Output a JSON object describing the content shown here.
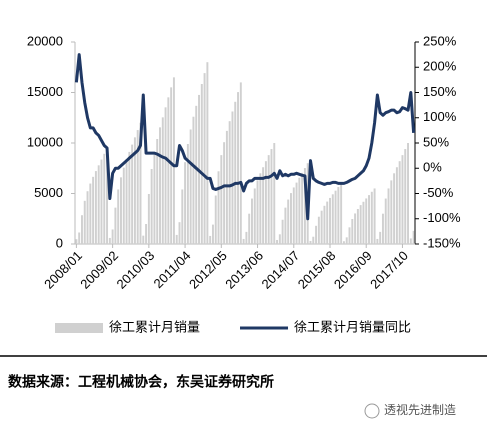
{
  "chart_data": {
    "type": "bar",
    "categories": [
      "2008/01",
      null,
      null,
      null,
      null,
      null,
      null,
      null,
      null,
      null,
      null,
      null,
      null,
      "2009/02",
      null,
      null,
      null,
      null,
      null,
      null,
      null,
      null,
      null,
      null,
      null,
      null,
      "2010/03",
      null,
      null,
      null,
      null,
      null,
      null,
      null,
      null,
      null,
      null,
      null,
      null,
      "2011/04",
      null,
      null,
      null,
      null,
      null,
      null,
      null,
      null,
      null,
      null,
      null,
      null,
      "2012/05",
      null,
      null,
      null,
      null,
      null,
      null,
      null,
      null,
      null,
      null,
      null,
      null,
      "2013/06",
      null,
      null,
      null,
      null,
      null,
      null,
      null,
      null,
      null,
      null,
      null,
      null,
      "2014/07",
      null,
      null,
      null,
      null,
      null,
      null,
      null,
      null,
      null,
      null,
      null,
      null,
      "2015/08",
      null,
      null,
      null,
      null,
      null,
      null,
      null,
      null,
      null,
      null,
      null,
      null,
      "2016/09",
      null,
      null,
      null,
      null,
      null,
      null,
      null,
      null,
      null,
      null,
      null,
      null,
      "2017/10",
      null,
      null,
      null,
      null
    ],
    "series": [
      {
        "name": "徐工累计月销量",
        "color": "#d0d0d0",
        "values": [
          475,
          1140,
          2850,
          4275,
          5225,
          5985,
          6650,
          7220,
          7790,
          8360,
          8930,
          9500,
          600,
          1440,
          3600,
          5400,
          6600,
          7560,
          8400,
          9120,
          9840,
          10560,
          11280,
          12000,
          825,
          1980,
          4950,
          7425,
          9075,
          10395,
          11550,
          12540,
          13530,
          14520,
          15510,
          16500,
          900,
          2160,
          5400,
          8100,
          9900,
          11340,
          12600,
          13680,
          14760,
          15840,
          16920,
          18000,
          800,
          1920,
          4800,
          7200,
          8800,
          10080,
          11200,
          12160,
          13120,
          14080,
          15040,
          16000,
          500,
          1200,
          3000,
          4500,
          5500,
          6300,
          7000,
          7600,
          8200,
          8800,
          9400,
          10000,
          400,
          960,
          2400,
          3600,
          4400,
          5040,
          5600,
          6080,
          6560,
          7040,
          7520,
          8000,
          300,
          720,
          1800,
          2700,
          3300,
          3780,
          4200,
          4560,
          4920,
          5280,
          5640,
          6000,
          275,
          660,
          1650,
          2475,
          3025,
          3465,
          3850,
          4180,
          4510,
          4840,
          5170,
          5500,
          500,
          1200,
          3000,
          4500,
          5500,
          6300,
          7000,
          7600,
          8200,
          8800,
          9400,
          10000,
          550,
          1300
        ]
      },
      {
        "name": "徐工累计月销量同比",
        "color": "#1f3864",
        "type": "line",
        "axis": "y2",
        "values": [
          170,
          225,
          170,
          130,
          100,
          80,
          80,
          70,
          65,
          55,
          45,
          40,
          -60,
          -10,
          0,
          0,
          5,
          10,
          15,
          20,
          25,
          30,
          35,
          45,
          145,
          30,
          30,
          30,
          30,
          28,
          25,
          22,
          20,
          15,
          10,
          5,
          5,
          45,
          35,
          20,
          15,
          10,
          5,
          0,
          -5,
          -10,
          -15,
          -20,
          -20,
          -40,
          -42,
          -40,
          -38,
          -35,
          -35,
          -35,
          -33,
          -30,
          -30,
          -28,
          -45,
          -30,
          -25,
          -25,
          -20,
          -20,
          -20,
          -20,
          -18,
          -18,
          -15,
          -10,
          -20,
          -5,
          -15,
          -12,
          -15,
          -12,
          -12,
          -10,
          -12,
          -14,
          -15,
          -100,
          15,
          -20,
          -25,
          -28,
          -30,
          -32,
          -30,
          -30,
          -28,
          -28,
          -30,
          -30,
          -30,
          -28,
          -25,
          -22,
          -20,
          -15,
          -10,
          -5,
          5,
          20,
          50,
          90,
          145,
          110,
          105,
          110,
          112,
          115,
          115,
          110,
          112,
          120,
          118,
          115,
          150,
          70
        ]
      }
    ],
    "ylim": [
      0,
      20000
    ],
    "yticks": [
      0,
      5000,
      10000,
      15000,
      20000
    ],
    "y2lim": [
      -150,
      250
    ],
    "y2ticks": [
      {
        "value": -150,
        "label": "-150%"
      },
      {
        "value": -100,
        "label": "-100%"
      },
      {
        "value": -50,
        "label": "-50%"
      },
      {
        "value": 0,
        "label": "0%"
      },
      {
        "value": 50,
        "label": "50%"
      },
      {
        "value": 100,
        "label": "100%"
      },
      {
        "value": 150,
        "label": "150%"
      },
      {
        "value": 200,
        "label": "200%"
      },
      {
        "value": 250,
        "label": "250%"
      }
    ],
    "grid": false,
    "legend": "bottom"
  },
  "footer": {
    "source": "数据来源：工程机械协会，东吴证券研究所",
    "watermark": "透视先进制造"
  }
}
